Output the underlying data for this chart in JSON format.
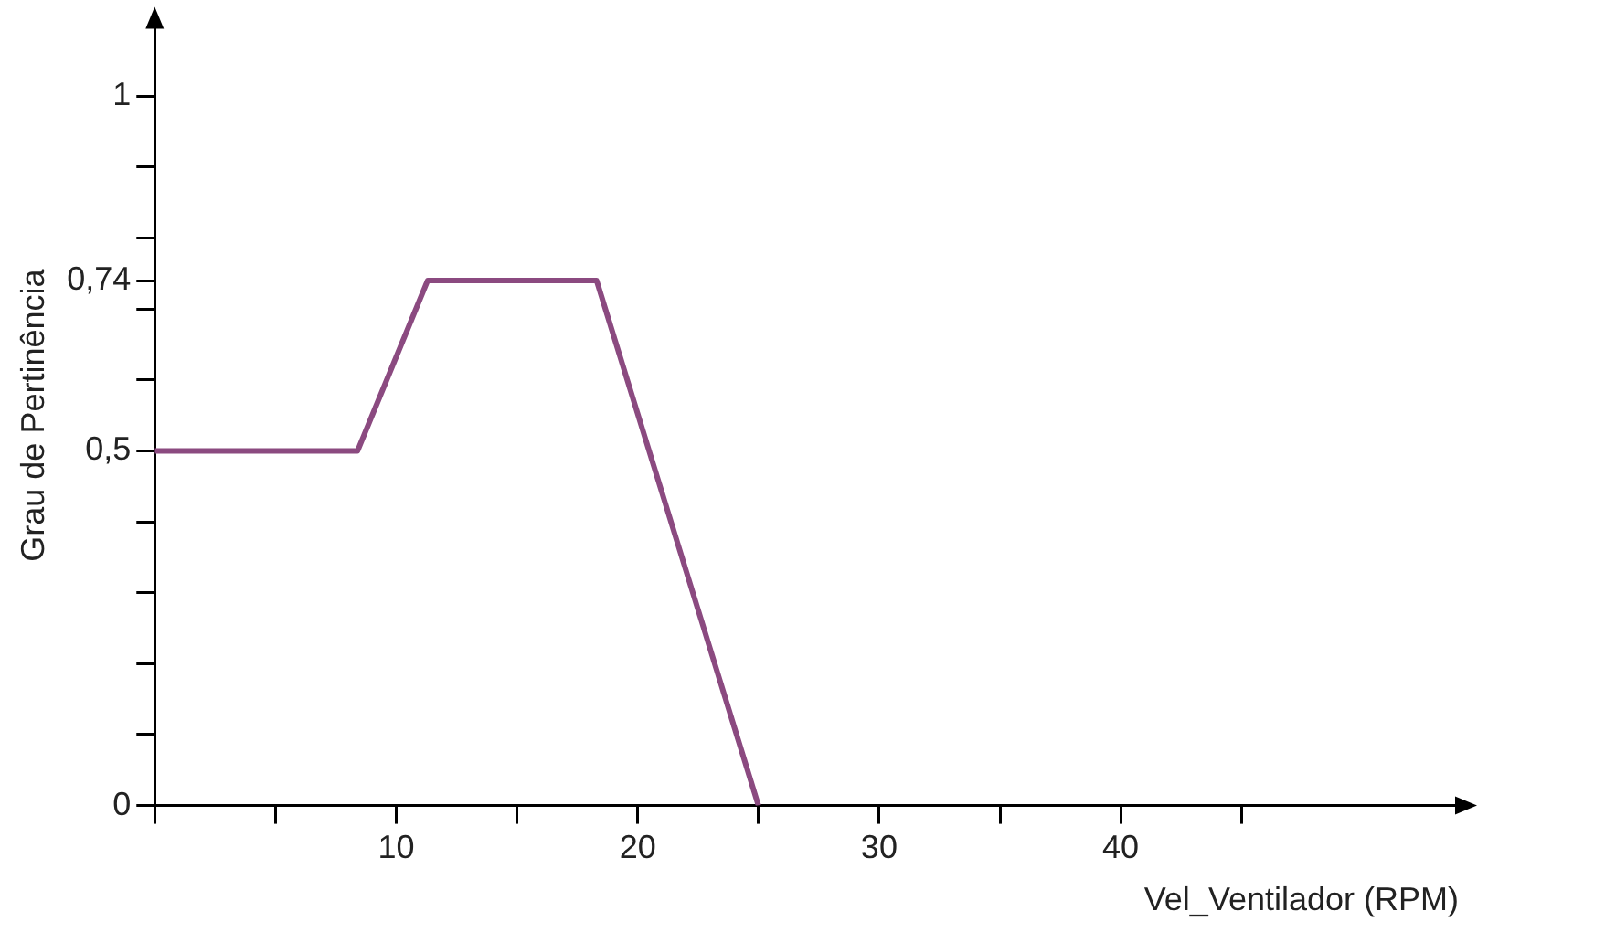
{
  "chart_data": {
    "type": "line",
    "xlabel": "Vel_Ventilador (RPM)",
    "ylabel": "Grau de Pertinência",
    "x": [
      0,
      8.4,
      11.3,
      18.3,
      25
    ],
    "series": [
      {
        "color": "#8b4a80",
        "values": [
          0.5,
          0.5,
          0.74,
          0.74,
          0
        ]
      }
    ],
    "xlim": [
      0,
      54
    ],
    "ylim": [
      0,
      1.1
    ],
    "xticks": [
      {
        "value": 0,
        "label": null
      },
      {
        "value": 5,
        "label": null
      },
      10,
      {
        "value": 15,
        "label": null
      },
      20,
      {
        "value": 25,
        "label": null
      },
      30,
      {
        "value": 35,
        "label": null
      },
      40,
      {
        "value": 45,
        "label": null
      }
    ],
    "yticks": [
      0,
      {
        "value": 0.1,
        "label": null
      },
      {
        "value": 0.2,
        "label": null
      },
      {
        "value": 0.3,
        "label": null
      },
      {
        "value": 0.4,
        "label": null
      },
      {
        "value": 0.5,
        "label": "0,5"
      },
      {
        "value": 0.6,
        "label": null
      },
      {
        "value": 0.7,
        "label": null
      },
      {
        "value": 0.74,
        "label": "0,74"
      },
      {
        "value": 0.8,
        "label": null
      },
      {
        "value": 0.9,
        "label": null
      },
      1
    ],
    "grid": false,
    "legend": false,
    "marker": "none",
    "line_style": "solid"
  }
}
